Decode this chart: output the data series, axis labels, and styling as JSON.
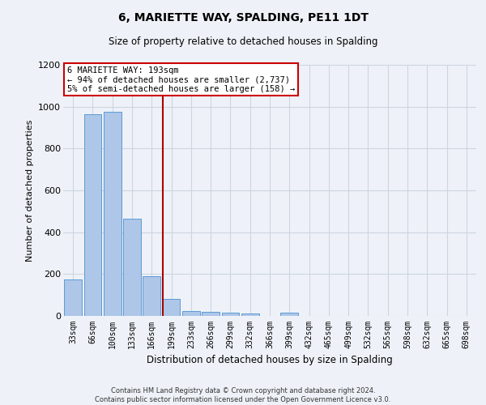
{
  "title": "6, MARIETTE WAY, SPALDING, PE11 1DT",
  "subtitle": "Size of property relative to detached houses in Spalding",
  "xlabel": "Distribution of detached houses by size in Spalding",
  "ylabel": "Number of detached properties",
  "footer_line1": "Contains HM Land Registry data © Crown copyright and database right 2024.",
  "footer_line2": "Contains public sector information licensed under the Open Government Licence v3.0.",
  "annotation_line1": "6 MARIETTE WAY: 193sqm",
  "annotation_line2": "← 94% of detached houses are smaller (2,737)",
  "annotation_line3": "5% of semi-detached houses are larger (158) →",
  "vline_pos": 4.55,
  "categories": [
    "33sqm",
    "66sqm",
    "100sqm",
    "133sqm",
    "166sqm",
    "199sqm",
    "233sqm",
    "266sqm",
    "299sqm",
    "332sqm",
    "366sqm",
    "399sqm",
    "432sqm",
    "465sqm",
    "499sqm",
    "532sqm",
    "565sqm",
    "598sqm",
    "632sqm",
    "665sqm",
    "698sqm"
  ],
  "values": [
    175,
    965,
    975,
    465,
    190,
    80,
    25,
    20,
    15,
    10,
    0,
    15,
    0,
    0,
    0,
    0,
    0,
    0,
    0,
    0,
    0
  ],
  "bar_color": "#aec6e8",
  "bar_edge_color": "#5b9bd5",
  "vline_color": "#aa0000",
  "annotation_box_color": "#cc0000",
  "grid_color": "#ccd5e0",
  "background_color": "#eef2f8",
  "ylim": [
    0,
    1200
  ],
  "yticks": [
    0,
    200,
    400,
    600,
    800,
    1000,
    1200
  ]
}
